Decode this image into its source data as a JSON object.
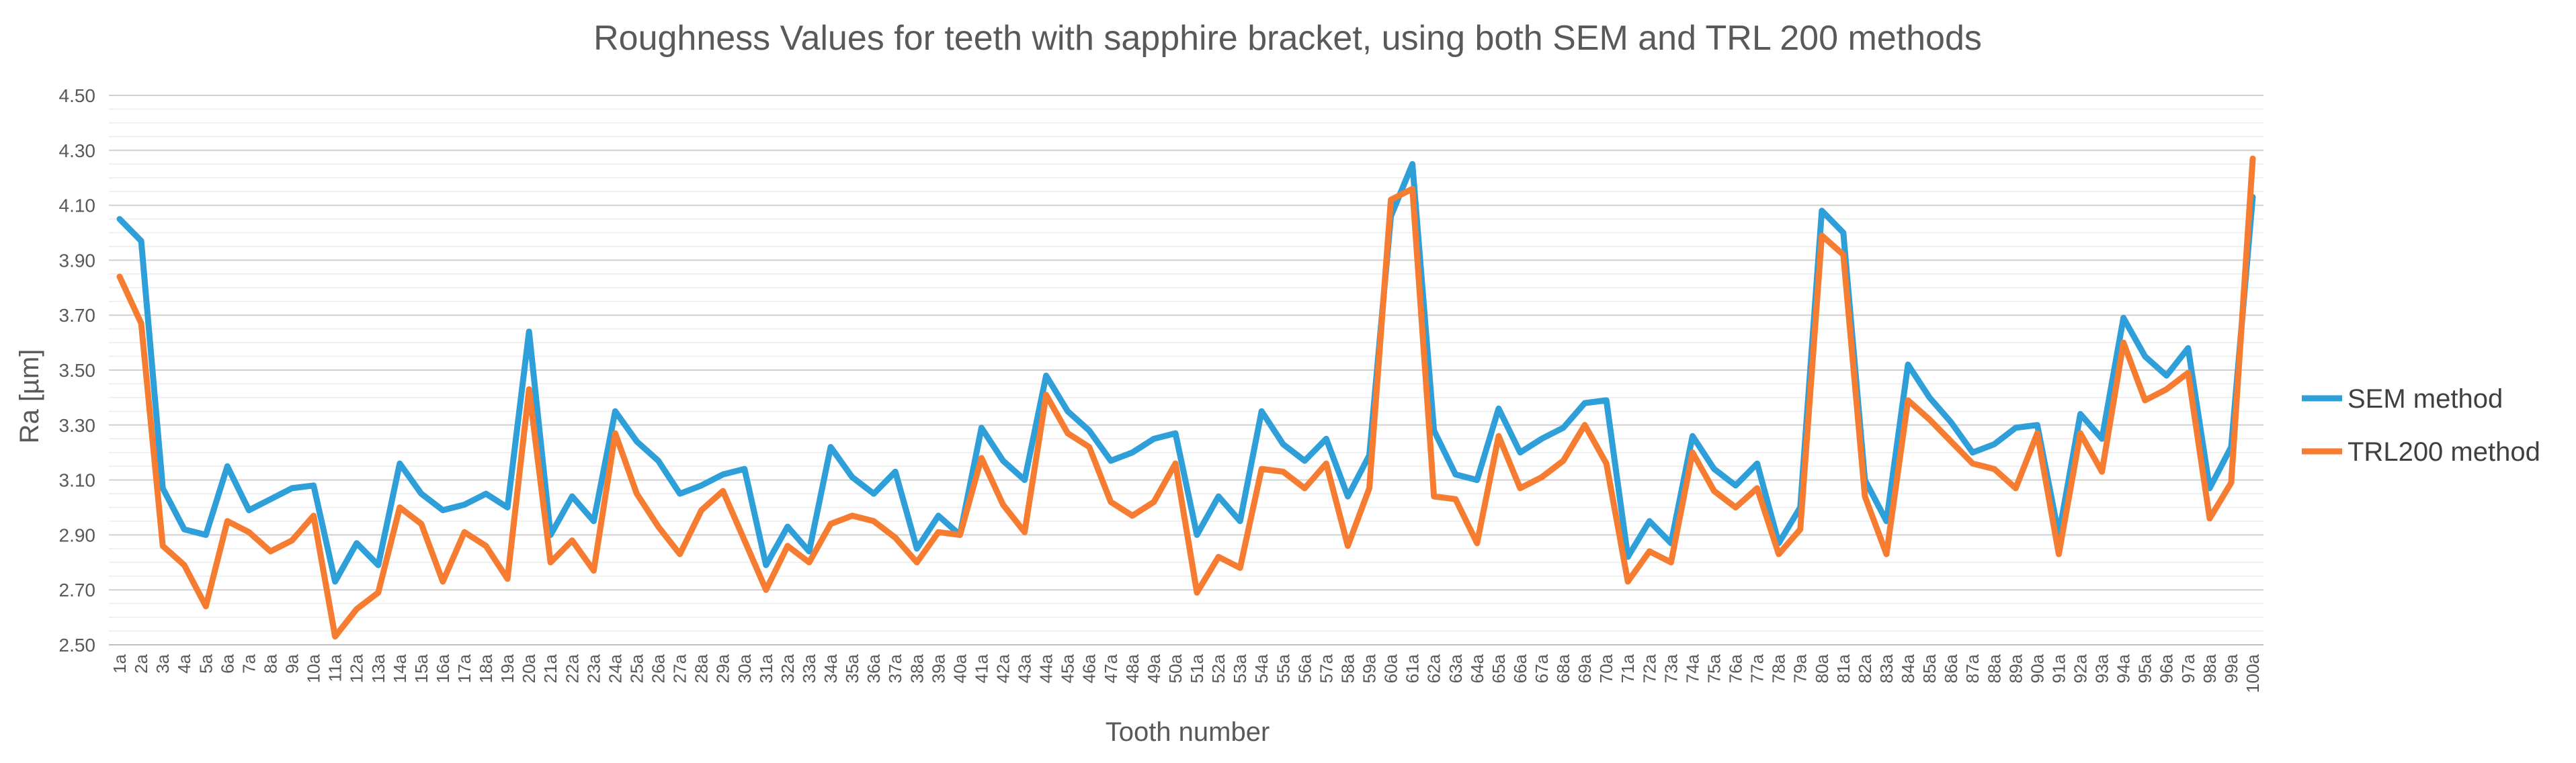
{
  "chart_data": {
    "type": "line",
    "title": "Roughness Values for teeth with sapphire bracket, using both SEM and TRL 200 methods",
    "xlabel": "Tooth number",
    "ylabel": "Ra [µm]",
    "ylim": [
      2.5,
      4.5
    ],
    "yticks": [
      "2.50",
      "2.70",
      "2.90",
      "3.10",
      "3.30",
      "3.50",
      "3.70",
      "3.90",
      "4.10",
      "4.30",
      "4.50"
    ],
    "grid": true,
    "legend_position": "right",
    "categories": [
      "1a",
      "2a",
      "3a",
      "4a",
      "5a",
      "6a",
      "7a",
      "8a",
      "9a",
      "10a",
      "11a",
      "12a",
      "13a",
      "14a",
      "15a",
      "16a",
      "17a",
      "18a",
      "19a",
      "20a",
      "21a",
      "22a",
      "23a",
      "24a",
      "25a",
      "26a",
      "27a",
      "28a",
      "29a",
      "30a",
      "31a",
      "32a",
      "33a",
      "34a",
      "35a",
      "36a",
      "37a",
      "38a",
      "39a",
      "40a",
      "41a",
      "42a",
      "43a",
      "44a",
      "45a",
      "46a",
      "47a",
      "48a",
      "49a",
      "50a",
      "51a",
      "52a",
      "53a",
      "54a",
      "55a",
      "56a",
      "57a",
      "58a",
      "59a",
      "60a",
      "61a",
      "62a",
      "63a",
      "64a",
      "65a",
      "66a",
      "67a",
      "68a",
      "69a",
      "70a",
      "71a",
      "72a",
      "73a",
      "74a",
      "75a",
      "76a",
      "77a",
      "78a",
      "79a",
      "80a",
      "81a",
      "82a",
      "83a",
      "84a",
      "85a",
      "86a",
      "87a",
      "88a",
      "89a",
      "90a",
      "91a",
      "92a",
      "93a",
      "94a",
      "95a",
      "96a",
      "97a",
      "98a",
      "99a",
      "100a"
    ],
    "series": [
      {
        "name": "SEM method",
        "color": "#2E9FD8",
        "values": [
          4.05,
          3.97,
          3.07,
          2.92,
          2.9,
          3.15,
          2.99,
          3.03,
          3.07,
          3.08,
          2.73,
          2.87,
          2.79,
          3.16,
          3.05,
          2.99,
          3.01,
          3.05,
          3.0,
          3.64,
          2.9,
          3.04,
          2.95,
          3.35,
          3.24,
          3.17,
          3.05,
          3.08,
          3.12,
          3.14,
          2.79,
          2.93,
          2.84,
          3.22,
          3.11,
          3.05,
          3.13,
          2.85,
          2.97,
          2.9,
          3.29,
          3.17,
          3.1,
          3.48,
          3.35,
          3.28,
          3.17,
          3.2,
          3.25,
          3.27,
          2.9,
          3.04,
          2.95,
          3.35,
          3.23,
          3.17,
          3.25,
          3.04,
          3.19,
          4.06,
          4.25,
          3.28,
          3.12,
          3.1,
          3.36,
          3.2,
          3.25,
          3.29,
          3.38,
          3.39,
          2.82,
          2.95,
          2.87,
          3.26,
          3.14,
          3.08,
          3.16,
          2.87,
          3.0,
          4.08,
          4.0,
          3.1,
          2.95,
          3.52,
          3.4,
          3.31,
          3.2,
          3.23,
          3.29,
          3.3,
          2.9,
          3.34,
          3.25,
          3.69,
          3.55,
          3.48,
          3.58,
          3.07,
          3.22,
          4.13
        ]
      },
      {
        "name": "TRL200 method",
        "color": "#F57C30",
        "values": [
          3.84,
          3.67,
          2.86,
          2.79,
          2.64,
          2.95,
          2.91,
          2.84,
          2.88,
          2.97,
          2.53,
          2.63,
          2.69,
          3.0,
          2.94,
          2.73,
          2.91,
          2.86,
          2.74,
          3.43,
          2.8,
          2.88,
          2.77,
          3.27,
          3.05,
          2.93,
          2.83,
          2.99,
          3.06,
          2.88,
          2.7,
          2.86,
          2.8,
          2.94,
          2.97,
          2.95,
          2.89,
          2.8,
          2.91,
          2.9,
          3.18,
          3.01,
          2.91,
          3.41,
          3.27,
          3.22,
          3.02,
          2.97,
          3.02,
          3.16,
          2.69,
          2.82,
          2.78,
          3.14,
          3.13,
          3.07,
          3.16,
          2.86,
          3.07,
          4.12,
          4.16,
          3.04,
          3.03,
          2.87,
          3.26,
          3.07,
          3.11,
          3.17,
          3.3,
          3.16,
          2.73,
          2.84,
          2.8,
          3.2,
          3.06,
          3.0,
          3.07,
          2.83,
          2.92,
          3.99,
          3.92,
          3.04,
          2.83,
          3.39,
          3.32,
          3.24,
          3.16,
          3.14,
          3.07,
          3.27,
          2.83,
          3.27,
          3.13,
          3.6,
          3.39,
          3.43,
          3.49,
          2.96,
          3.09,
          4.27
        ]
      }
    ]
  }
}
